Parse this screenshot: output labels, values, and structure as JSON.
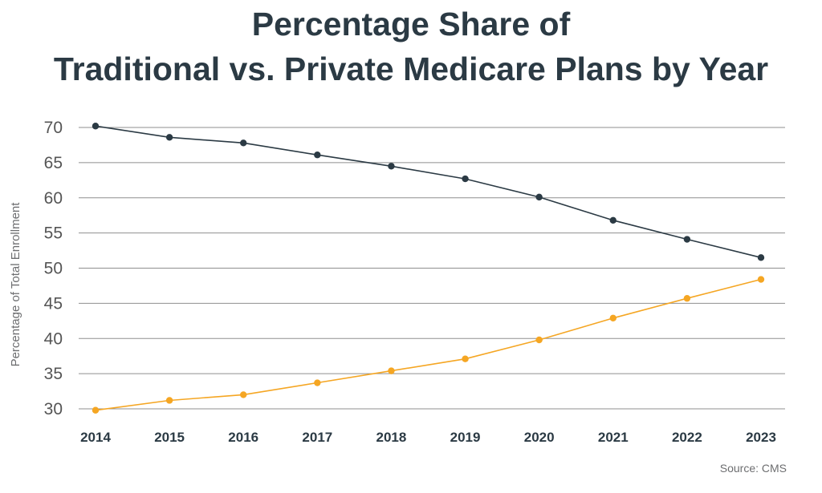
{
  "chart_data": {
    "type": "line",
    "title_line1": "Percentage Share of",
    "title_line2": "Traditional vs. Private Medicare Plans by Year",
    "ylabel": "Percentage of Total Enrollment",
    "xlabel": "",
    "x": [
      2014,
      2015,
      2016,
      2017,
      2018,
      2019,
      2020,
      2021,
      2022,
      2023
    ],
    "ylim": [
      30,
      70
    ],
    "yticks": [
      30,
      35,
      40,
      45,
      50,
      55,
      60,
      65,
      70
    ],
    "grid": true,
    "series": [
      {
        "color": "#2b3a44",
        "values": [
          70.2,
          68.6,
          67.8,
          66.1,
          64.5,
          62.7,
          60.1,
          56.8,
          54.1,
          51.5
        ]
      },
      {
        "color": "#f5a623",
        "values": [
          29.8,
          31.2,
          32.0,
          33.7,
          35.4,
          37.1,
          39.8,
          42.9,
          45.7,
          48.4
        ]
      }
    ],
    "source": "Source: CMS"
  }
}
